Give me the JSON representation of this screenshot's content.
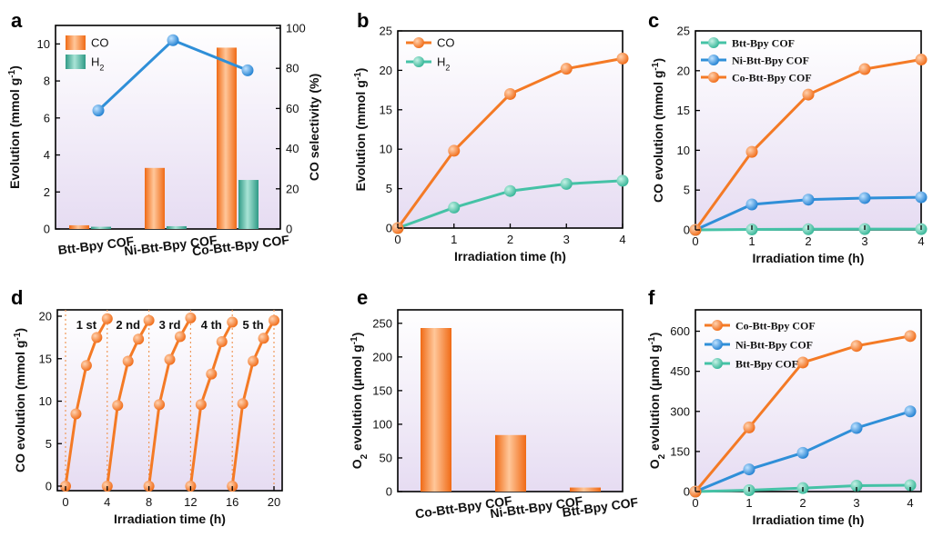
{
  "colors": {
    "co_orange": "#f47a25",
    "h2_teal": "#45c2a6",
    "bar_teal": "#3fa994",
    "selectivity_blue": "#2f8fd8",
    "ni_blue": "#2f8fd8",
    "cycle_line": "#f09a5c",
    "bg_top": "#ffffff",
    "bg_bottom": "#e6dcf2"
  },
  "chart_data": [
    {
      "panel": "a",
      "type": "bar",
      "categories": [
        "Btt-Bpy COF",
        "Ni-Btt-Bpy COF",
        "Co-Btt-Bpy COF"
      ],
      "series": [
        {
          "name": "CO",
          "values": [
            0.2,
            3.3,
            9.8
          ]
        },
        {
          "name": "H",
          "name_sub": "2",
          "values": [
            0.12,
            0.15,
            2.65
          ]
        }
      ],
      "secondary_series": {
        "values": [
          59,
          94,
          79
        ]
      },
      "ylabel": "Evolution (mmol g",
      "ylabel_sup": "-1",
      "ylabel_tail": ")",
      "y2label": "CO selectivity (%)",
      "ylim": [
        0,
        11
      ],
      "y2lim": [
        0,
        100
      ],
      "yticks": [
        0,
        2,
        4,
        6,
        8,
        10
      ],
      "y2ticks": [
        0,
        20,
        40,
        60,
        80,
        100
      ],
      "legend": "top-left"
    },
    {
      "panel": "b",
      "type": "line",
      "x": [
        0,
        1,
        2,
        3,
        4
      ],
      "series": [
        {
          "name": "CO",
          "values": [
            0,
            9.8,
            17.0,
            20.2,
            21.5
          ]
        },
        {
          "name": "H",
          "name_sub": "2",
          "values": [
            0,
            2.6,
            4.7,
            5.6,
            6.0
          ]
        }
      ],
      "xlabel": "Irradiation time (h)",
      "ylabel": "Evolution (mmol g",
      "ylabel_sup": "-1",
      "ylabel_tail": ")",
      "xlim": [
        0,
        4
      ],
      "ylim": [
        0,
        25
      ],
      "xticks": [
        0,
        1,
        2,
        3,
        4
      ],
      "yticks": [
        0,
        5,
        10,
        15,
        20,
        25
      ],
      "legend": "top-left"
    },
    {
      "panel": "c",
      "type": "line",
      "x": [
        0,
        1,
        2,
        3,
        4
      ],
      "series": [
        {
          "name": "Btt-Bpy COF",
          "values": [
            0,
            0.05,
            0.08,
            0.1,
            0.1
          ]
        },
        {
          "name": "Ni-Btt-Bpy COF",
          "values": [
            0,
            3.2,
            3.8,
            4.0,
            4.1
          ]
        },
        {
          "name": "Co-Btt-Bpy COF",
          "values": [
            0,
            9.8,
            17.0,
            20.2,
            21.4
          ]
        }
      ],
      "xlabel": "Irradiation time (h)",
      "ylabel": "CO evolution (mmol g",
      "ylabel_sup": "-1",
      "ylabel_tail": ")",
      "xlim": [
        0,
        4
      ],
      "ylim": [
        0,
        25
      ],
      "xticks": [
        0,
        1,
        2,
        3,
        4
      ],
      "yticks": [
        0,
        5,
        10,
        15,
        20,
        25
      ],
      "legend": "top-left"
    },
    {
      "panel": "d",
      "type": "line",
      "cycles": [
        {
          "label": "1 st",
          "x": [
            0,
            1,
            2,
            3,
            4
          ],
          "values": [
            0,
            8.5,
            14.2,
            17.5,
            19.7
          ]
        },
        {
          "label": "2 nd",
          "x": [
            4,
            5,
            6,
            7,
            8
          ],
          "values": [
            0,
            9.5,
            14.7,
            17.3,
            19.5
          ]
        },
        {
          "label": "3 rd",
          "x": [
            8,
            9,
            10,
            11,
            12
          ],
          "values": [
            0,
            9.6,
            14.9,
            17.6,
            19.8
          ]
        },
        {
          "label": "4 th",
          "x": [
            12,
            13,
            14,
            15,
            16
          ],
          "values": [
            0,
            9.6,
            13.2,
            17.0,
            19.3
          ]
        },
        {
          "label": "5 th",
          "x": [
            16,
            17,
            18,
            19,
            20
          ],
          "values": [
            0,
            9.7,
            14.7,
            17.4,
            19.5
          ]
        }
      ],
      "xlabel": "Irradiation time (h)",
      "ylabel": "CO evolution (mmol g",
      "ylabel_sup": "-1",
      "ylabel_tail": ")",
      "xlim": [
        0,
        20
      ],
      "ylim": [
        0,
        20
      ],
      "xticks": [
        0,
        4,
        8,
        12,
        16,
        20
      ],
      "yticks": [
        0,
        5,
        10,
        15,
        20
      ],
      "cycle_separators": [
        0,
        4,
        8,
        12,
        16,
        20
      ]
    },
    {
      "panel": "e",
      "type": "bar",
      "categories": [
        "Co-Btt-Bpy COF",
        "Ni-Btt-Bpy COF",
        "Btt-Bpy COF"
      ],
      "values": [
        243,
        84,
        6
      ],
      "ylabel_pre": "O",
      "ylabel_sub": "2",
      "ylabel": " evolution (μmol g",
      "ylabel_sup": "-1",
      "ylabel_tail": ")",
      "ylim": [
        0,
        270
      ],
      "yticks": [
        0,
        50,
        100,
        150,
        200,
        250
      ]
    },
    {
      "panel": "f",
      "type": "line",
      "x": [
        0,
        1,
        2,
        3,
        4
      ],
      "series": [
        {
          "name": "Co-Btt-Bpy COF",
          "values": [
            0,
            240,
            483,
            545,
            582
          ]
        },
        {
          "name": "Ni-Btt-Bpy COF",
          "values": [
            0,
            83,
            145,
            238,
            300
          ]
        },
        {
          "name": "Btt-Bpy COF",
          "values": [
            0,
            5,
            13,
            22,
            24
          ]
        }
      ],
      "xlabel": "Irradiation time (h)",
      "ylabel_pre": "O",
      "ylabel_sub": "2",
      "ylabel": " evolution (μmol g",
      "ylabel_sup": "-1",
      "ylabel_tail": ")",
      "xlim": [
        0,
        4
      ],
      "ylim": [
        0,
        680
      ],
      "xticks": [
        0,
        1,
        2,
        3,
        4
      ],
      "yticks": [
        0,
        150,
        300,
        450,
        600
      ],
      "legend": "top-left"
    }
  ]
}
